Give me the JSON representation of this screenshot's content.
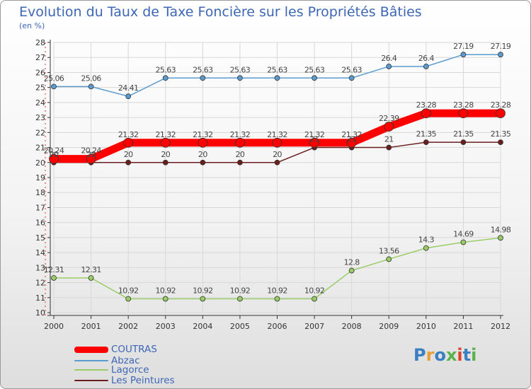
{
  "header": {
    "title": "Evolution du Taux de Taxe Foncière sur les Propriétés Bâties",
    "unit": "(en %)"
  },
  "logo": {
    "text": "Proxiti",
    "colors": [
      "#3a7fc1",
      "#e8a13a",
      "#3a7fc1",
      "#5bb24a",
      "#e0402a",
      "#3a7fc1",
      "#5bb24a"
    ]
  },
  "colors": {
    "COUTRAS": "#ff0000",
    "Abzac": "#5b9bd0",
    "Lagorce": "#99cc66",
    "Les Peintures": "#6b1e1e",
    "title": "#3d66b5",
    "axis": "#333333",
    "grid": "#d8d8d8"
  },
  "chart_data": {
    "type": "line",
    "title": "Evolution du Taux de Taxe Foncière sur les Propriétés Bâties",
    "ylabel": "(en %)",
    "xlabel": "",
    "x": [
      "2000",
      "2001",
      "2002",
      "2003",
      "2004",
      "2005",
      "2006",
      "2007",
      "2008",
      "2009",
      "2010",
      "2011",
      "2012"
    ],
    "ylim": [
      10,
      28
    ],
    "yticks": [
      10,
      11,
      12,
      13,
      14,
      15,
      16,
      17,
      18,
      19,
      20,
      21,
      22,
      23,
      24,
      25,
      26,
      27,
      28
    ],
    "grid": true,
    "legend_position": "bottom-left",
    "series": [
      {
        "name": "COUTRAS",
        "values": [
          20.24,
          20.24,
          21.32,
          21.32,
          21.32,
          21.32,
          21.32,
          21.32,
          21.32,
          22.39,
          23.28,
          23.28,
          23.28
        ],
        "labels": [
          "20.24",
          "20.24",
          "21.32",
          "21.32",
          "21.32",
          "21.32",
          "21.32",
          "21.32",
          "21.32",
          "22.39",
          "23.28",
          "23.28",
          "23.28"
        ]
      },
      {
        "name": "Abzac",
        "values": [
          25.06,
          25.06,
          24.41,
          25.63,
          25.63,
          25.63,
          25.63,
          25.63,
          25.63,
          26.4,
          26.4,
          27.19,
          27.19
        ],
        "labels": [
          "25.06",
          "25.06",
          "24.41",
          "25.63",
          "25.63",
          "25.63",
          "25.63",
          "25.63",
          "25.63",
          "26.4",
          "26.4",
          "27.19",
          "27.19"
        ]
      },
      {
        "name": "Lagorce",
        "values": [
          12.31,
          12.31,
          10.92,
          10.92,
          10.92,
          10.92,
          10.92,
          10.92,
          12.8,
          13.56,
          14.3,
          14.69,
          14.98
        ],
        "labels": [
          "12.31",
          "12.31",
          "10.92",
          "10.92",
          "10.92",
          "10.92",
          "10.92",
          "10.92",
          "12.8",
          "13.56",
          "14.3",
          "14.69",
          "14.98"
        ]
      },
      {
        "name": "Les Peintures",
        "values": [
          20,
          20,
          20,
          20,
          20,
          20,
          20,
          21,
          21,
          21,
          21.35,
          21.35,
          21.35
        ],
        "labels": [
          "20",
          "20",
          "20",
          "20",
          "20",
          "20",
          "20",
          "21",
          "21",
          "21",
          "21.35",
          "21.35",
          "21.35"
        ]
      }
    ]
  }
}
